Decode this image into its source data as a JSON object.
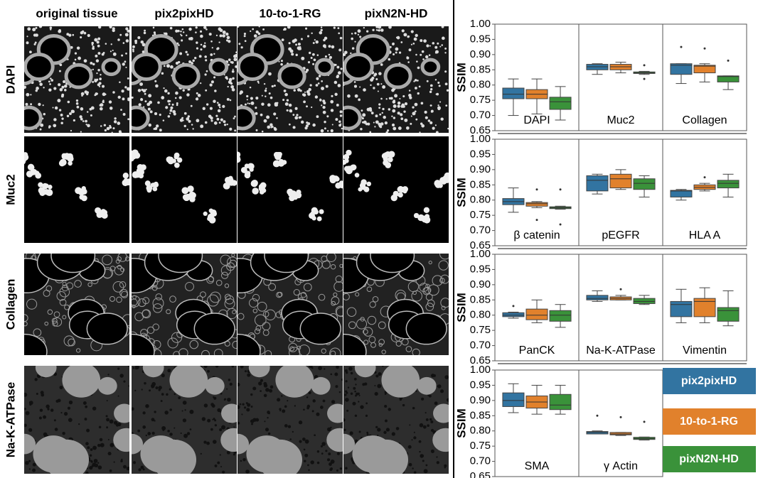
{
  "images": {
    "columns": [
      "original tissue",
      "pix2pixHD",
      "10-to-1-RG",
      "pixN2N-HD"
    ],
    "rows": [
      "DAPI",
      "Muc2",
      "Collagen",
      "Na-K-ATPase"
    ]
  },
  "chart_data": {
    "type": "box",
    "ylabel": "SSIM",
    "ylim": [
      0.65,
      1.0
    ],
    "yticks": [
      0.65,
      {
        "value": 0.7,
        "label": "0.70"
      },
      0.75,
      {
        "value": 0.8,
        "label": "0.80"
      },
      0.85,
      {
        "value": 0.9,
        "label": "0.90"
      },
      0.95,
      {
        "value": 1.0,
        "label": "1.00"
      }
    ],
    "legend": [
      {
        "name": "pix2pixHD",
        "color": "#3274a1"
      },
      {
        "name": "10-to-1-RG",
        "color": "#e1812c"
      },
      {
        "name": "pixN2N-HD",
        "color": "#3a923a"
      }
    ],
    "panels": [
      {
        "categories": [
          "DAPI",
          "Muc2",
          "Collagen"
        ],
        "boxes": [
          [
            {
              "whislo": 0.7,
              "q1": 0.755,
              "median": 0.77,
              "q3": 0.79,
              "whishi": 0.82,
              "fliers": []
            },
            {
              "whislo": 0.705,
              "q1": 0.755,
              "median": 0.77,
              "q3": 0.785,
              "whishi": 0.82,
              "fliers": []
            },
            {
              "whislo": 0.685,
              "q1": 0.72,
              "median": 0.745,
              "q3": 0.76,
              "whishi": 0.795,
              "fliers": []
            }
          ],
          [
            {
              "whislo": 0.835,
              "q1": 0.85,
              "median": 0.86,
              "q3": 0.868,
              "whishi": 0.87,
              "fliers": []
            },
            {
              "whislo": 0.84,
              "q1": 0.85,
              "median": 0.86,
              "q3": 0.868,
              "whishi": 0.875,
              "fliers": []
            },
            {
              "whislo": 0.835,
              "q1": 0.838,
              "median": 0.84,
              "q3": 0.843,
              "whishi": 0.845,
              "fliers": [
                0.865,
                0.82
              ]
            }
          ],
          [
            {
              "whislo": 0.805,
              "q1": 0.835,
              "median": 0.865,
              "q3": 0.87,
              "whishi": 0.87,
              "fliers": [
                0.925
              ]
            },
            {
              "whislo": 0.81,
              "q1": 0.84,
              "median": 0.862,
              "q3": 0.865,
              "whishi": 0.87,
              "fliers": [
                0.92
              ]
            },
            {
              "whislo": 0.785,
              "q1": 0.81,
              "median": 0.828,
              "q3": 0.83,
              "whishi": 0.83,
              "fliers": [
                0.88
              ]
            }
          ]
        ]
      },
      {
        "categories": [
          "β catenin",
          "pEGFR",
          "HLA A"
        ],
        "boxes": [
          [
            {
              "whislo": 0.76,
              "q1": 0.785,
              "median": 0.795,
              "q3": 0.805,
              "whishi": 0.84,
              "fliers": []
            },
            {
              "whislo": 0.775,
              "q1": 0.78,
              "median": 0.788,
              "q3": 0.792,
              "whishi": 0.795,
              "fliers": [
                0.835,
                0.735
              ]
            },
            {
              "whislo": 0.77,
              "q1": 0.772,
              "median": 0.775,
              "q3": 0.778,
              "whishi": 0.78,
              "fliers": [
                0.835,
                0.72
              ]
            }
          ],
          [
            {
              "whislo": 0.82,
              "q1": 0.83,
              "median": 0.865,
              "q3": 0.88,
              "whishi": 0.885,
              "fliers": []
            },
            {
              "whislo": 0.835,
              "q1": 0.84,
              "median": 0.87,
              "q3": 0.885,
              "whishi": 0.9,
              "fliers": []
            },
            {
              "whislo": 0.81,
              "q1": 0.835,
              "median": 0.855,
              "q3": 0.87,
              "whishi": 0.88,
              "fliers": []
            }
          ],
          [
            {
              "whislo": 0.8,
              "q1": 0.81,
              "median": 0.83,
              "q3": 0.832,
              "whishi": 0.835,
              "fliers": []
            },
            {
              "whislo": 0.83,
              "q1": 0.835,
              "median": 0.842,
              "q3": 0.85,
              "whishi": 0.855,
              "fliers": [
                0.875
              ]
            },
            {
              "whislo": 0.81,
              "q1": 0.84,
              "median": 0.855,
              "q3": 0.865,
              "whishi": 0.885,
              "fliers": []
            }
          ]
        ]
      },
      {
        "categories": [
          "PanCK",
          "Na-K-ATPase",
          "Vimentin"
        ],
        "boxes": [
          [
            {
              "whislo": 0.79,
              "q1": 0.795,
              "median": 0.8,
              "q3": 0.808,
              "whishi": 0.81,
              "fliers": [
                0.83
              ]
            },
            {
              "whislo": 0.775,
              "q1": 0.785,
              "median": 0.8,
              "q3": 0.82,
              "whishi": 0.85,
              "fliers": []
            },
            {
              "whislo": 0.76,
              "q1": 0.78,
              "median": 0.8,
              "q3": 0.815,
              "whishi": 0.835,
              "fliers": []
            }
          ],
          [
            {
              "whislo": 0.845,
              "q1": 0.85,
              "median": 0.855,
              "q3": 0.865,
              "whishi": 0.88,
              "fliers": []
            },
            {
              "whislo": 0.85,
              "q1": 0.85,
              "median": 0.855,
              "q3": 0.86,
              "whishi": 0.865,
              "fliers": [
                0.885
              ]
            },
            {
              "whislo": 0.835,
              "q1": 0.838,
              "median": 0.845,
              "q3": 0.855,
              "whishi": 0.865,
              "fliers": []
            }
          ],
          [
            {
              "whislo": 0.775,
              "q1": 0.795,
              "median": 0.835,
              "q3": 0.845,
              "whishi": 0.885,
              "fliers": []
            },
            {
              "whislo": 0.775,
              "q1": 0.795,
              "median": 0.845,
              "q3": 0.855,
              "whishi": 0.89,
              "fliers": []
            },
            {
              "whislo": 0.765,
              "q1": 0.78,
              "median": 0.815,
              "q3": 0.825,
              "whishi": 0.88,
              "fliers": []
            }
          ]
        ]
      },
      {
        "categories": [
          "SMA",
          "γ Actin"
        ],
        "boxes": [
          [
            {
              "whislo": 0.86,
              "q1": 0.88,
              "median": 0.9,
              "q3": 0.925,
              "whishi": 0.955,
              "fliers": []
            },
            {
              "whislo": 0.855,
              "q1": 0.875,
              "median": 0.895,
              "q3": 0.915,
              "whishi": 0.95,
              "fliers": []
            },
            {
              "whislo": 0.855,
              "q1": 0.87,
              "median": 0.885,
              "q3": 0.92,
              "whishi": 0.95,
              "fliers": []
            }
          ],
          [
            {
              "whislo": 0.79,
              "q1": 0.79,
              "median": 0.795,
              "q3": 0.798,
              "whishi": 0.8,
              "fliers": [
                0.85
              ]
            },
            {
              "whislo": 0.785,
              "q1": 0.787,
              "median": 0.79,
              "q3": 0.795,
              "whishi": 0.795,
              "fliers": [
                0.845
              ]
            },
            {
              "whislo": 0.77,
              "q1": 0.772,
              "median": 0.775,
              "q3": 0.779,
              "whishi": 0.78,
              "fliers": [
                0.83
              ]
            }
          ]
        ]
      }
    ]
  }
}
